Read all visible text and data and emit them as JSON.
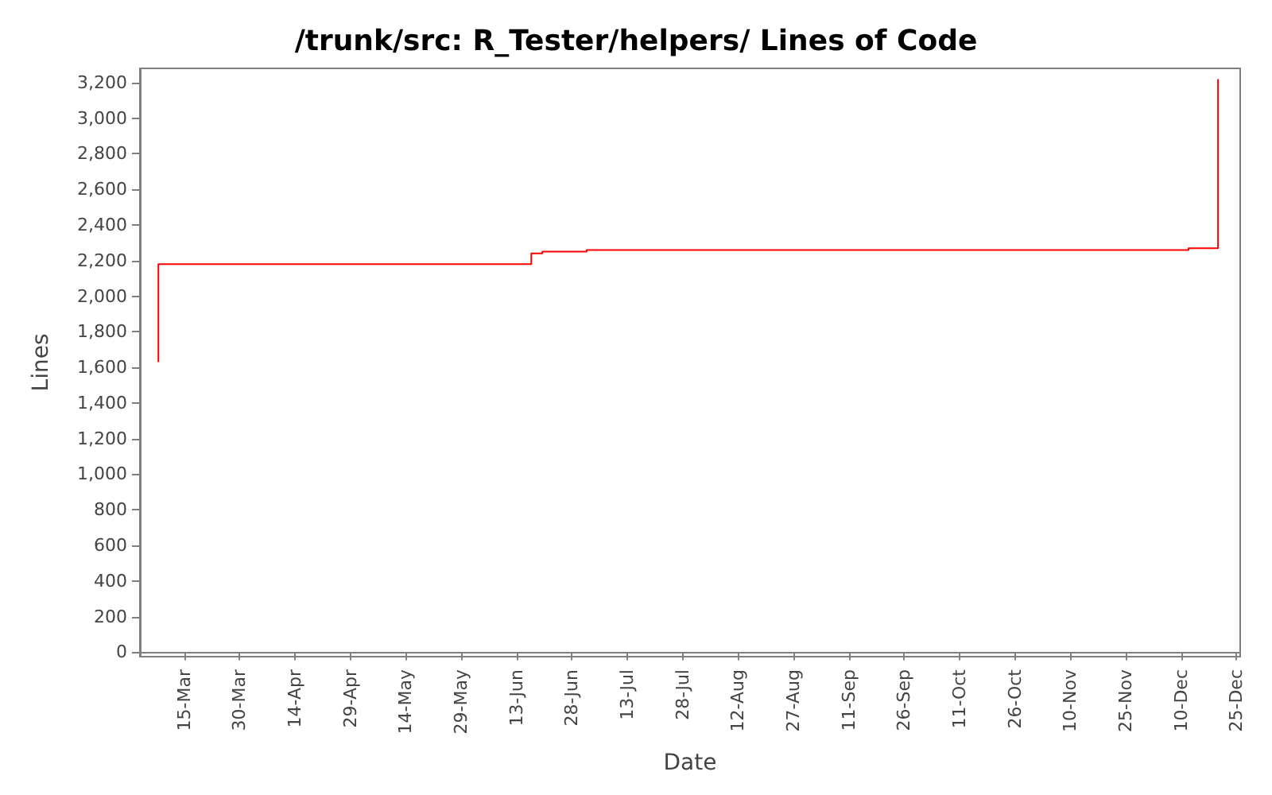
{
  "chart_data": {
    "type": "step",
    "title": "/trunk/src: R_Tester/helpers/ Lines of Code",
    "xlabel": "Date",
    "ylabel": "Lines",
    "x": [
      "--03-08",
      "--03-08",
      "--06-17",
      "--06-20",
      "--07-02",
      "--12-12",
      "--12-20"
    ],
    "series": [
      {
        "color": "#ff0000",
        "values": [
          1630,
          2180,
          2240,
          2250,
          2260,
          2270,
          3220
        ]
      }
    ],
    "xlim": [
      "--03-03",
      "--12-26"
    ],
    "xticks": [
      {
        "value": "--03-15",
        "label": "15-Mar"
      },
      {
        "value": "--03-30",
        "label": "30-Mar"
      },
      {
        "value": "--04-14",
        "label": "14-Apr"
      },
      {
        "value": "--04-29",
        "label": "29-Apr"
      },
      {
        "value": "--05-14",
        "label": "14-May"
      },
      {
        "value": "--05-29",
        "label": "29-May"
      },
      {
        "value": "--06-13",
        "label": "13-Jun"
      },
      {
        "value": "--06-28",
        "label": "28-Jun"
      },
      {
        "value": "--07-13",
        "label": "13-Jul"
      },
      {
        "value": "--07-28",
        "label": "28-Jul"
      },
      {
        "value": "--08-12",
        "label": "12-Aug"
      },
      {
        "value": "--08-27",
        "label": "27-Aug"
      },
      {
        "value": "--09-11",
        "label": "11-Sep"
      },
      {
        "value": "--09-26",
        "label": "26-Sep"
      },
      {
        "value": "--10-11",
        "label": "11-Oct"
      },
      {
        "value": "--10-26",
        "label": "26-Oct"
      },
      {
        "value": "--11-10",
        "label": "10-Nov"
      },
      {
        "value": "--11-25",
        "label": "25-Nov"
      },
      {
        "value": "--12-10",
        "label": "10-Dec"
      },
      {
        "value": "--12-25",
        "label": "25-Dec"
      }
    ],
    "ylim": [
      -25,
      3280
    ],
    "yticks": [
      0,
      200,
      400,
      600,
      800,
      {
        "value": 1000,
        "label": "1,000"
      },
      {
        "value": 1200,
        "label": "1,200"
      },
      {
        "value": 1400,
        "label": "1,400"
      },
      {
        "value": 1600,
        "label": "1,600"
      },
      {
        "value": 1800,
        "label": "1,800"
      },
      {
        "value": 2000,
        "label": "2,000"
      },
      {
        "value": 2200,
        "label": "2,200"
      },
      {
        "value": 2400,
        "label": "2,400"
      },
      {
        "value": 2600,
        "label": "2,600"
      },
      {
        "value": 2800,
        "label": "2,800"
      },
      {
        "value": 3000,
        "label": "3,000"
      },
      {
        "value": 3200,
        "label": "3,200"
      }
    ],
    "marker": "none",
    "line_style": "solid"
  }
}
